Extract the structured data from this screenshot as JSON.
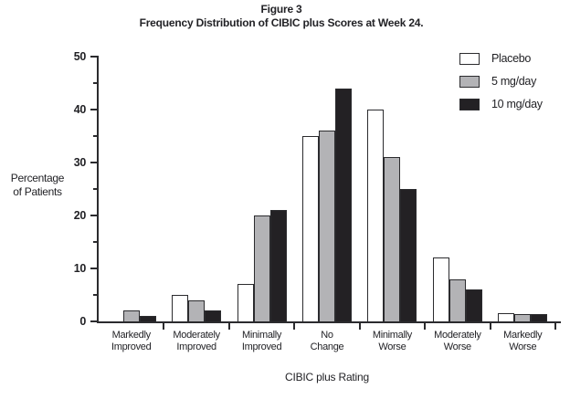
{
  "figure": {
    "title_line1": "Figure 3",
    "title_line2": "Frequency Distribution of CIBIC plus Scores at Week 24."
  },
  "chart_data": {
    "type": "bar",
    "title": "Figure 3 — Frequency Distribution of CIBIC plus Scores at Week 24.",
    "categories": [
      "Markedly Improved",
      "Moderately Improved",
      "Minimally Improved",
      "No Change",
      "Minimally Worse",
      "Moderately Worse",
      "Markedly Worse"
    ],
    "series": [
      {
        "name": "Placebo",
        "color": "#ffffff",
        "values": [
          0,
          5,
          7,
          35,
          40,
          12,
          1.5
        ]
      },
      {
        "name": "5 mg/day",
        "color": "#b3b3b6",
        "values": [
          2,
          4,
          20,
          36,
          31,
          8,
          1.3
        ]
      },
      {
        "name": "10 mg/day",
        "color": "#232124",
        "values": [
          1,
          2,
          21,
          44,
          25,
          6,
          1.4
        ]
      }
    ],
    "xlabel": "CIBIC plus Rating",
    "ylabel": "Percentage of Patients",
    "ylabel_lines": [
      "Percentage",
      "of Patients"
    ],
    "ylim": [
      0,
      50
    ],
    "yticks": [
      0,
      10,
      20,
      30,
      40,
      50
    ],
    "yticks_minor": [
      5,
      15,
      25,
      35,
      45
    ],
    "legend_position": "top-right",
    "grid": false
  },
  "colors": {
    "text": "#222226",
    "axis": "#2b2b2e",
    "bar_outline": "#2b2b2e",
    "background": "#ffffff"
  }
}
